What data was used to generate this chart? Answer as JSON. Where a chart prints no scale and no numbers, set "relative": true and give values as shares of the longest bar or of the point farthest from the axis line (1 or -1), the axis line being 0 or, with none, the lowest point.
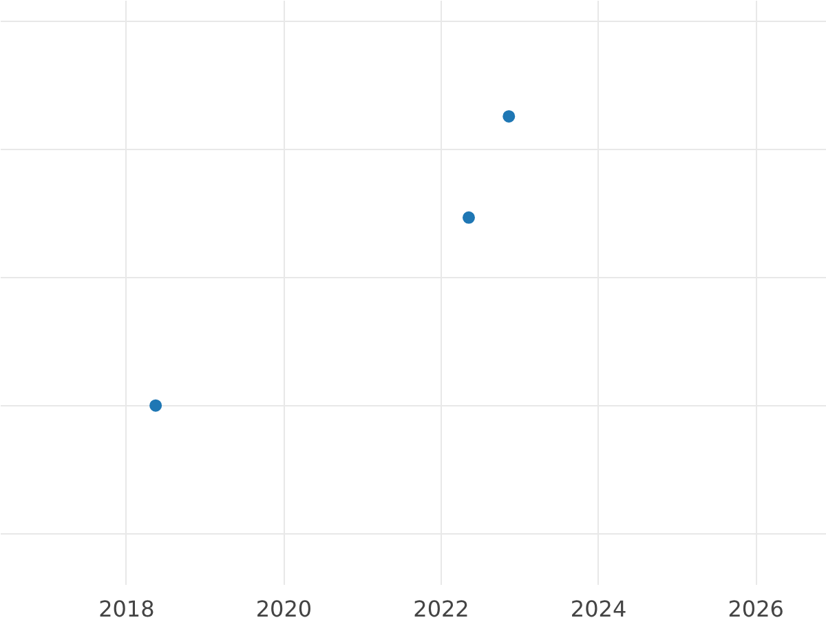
{
  "chart_data": {
    "type": "scatter",
    "relative": true,
    "x": [
      2018.37,
      2022.35,
      2022.86
    ],
    "values": [
      0,
      0.65,
      1
    ],
    "color": "#1f77b4",
    "xlim": [
      2016.4,
      2026.9
    ],
    "xticks": [
      2018,
      2020,
      2022,
      2024,
      2026
    ],
    "grid": true,
    "marker": "circle"
  }
}
